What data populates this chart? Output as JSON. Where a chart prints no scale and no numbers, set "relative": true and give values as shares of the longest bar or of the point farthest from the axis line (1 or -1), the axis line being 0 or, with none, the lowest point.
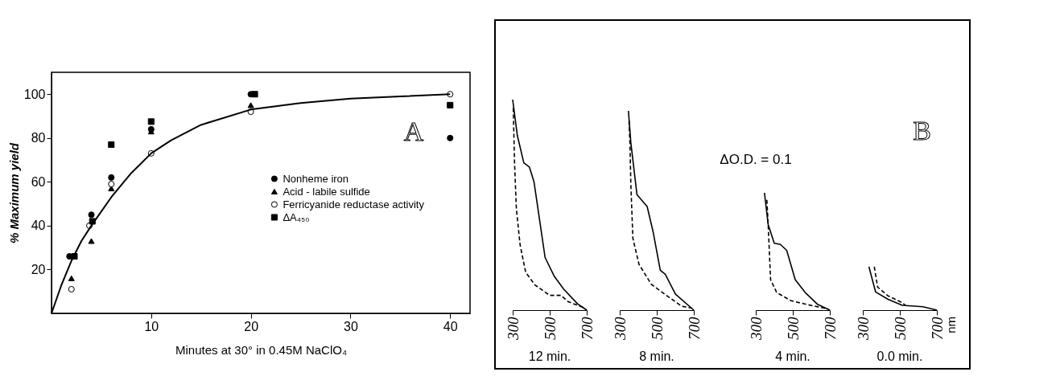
{
  "chart_data": [
    {
      "type": "scatter",
      "xlabel": "Minutes at 30° in 0.45M NaClO₄",
      "ylabel": "% Maximum yield",
      "xlim": [
        0,
        42
      ],
      "ylim": [
        0,
        110
      ],
      "xticks": [
        10,
        20,
        30,
        40
      ],
      "yticks": [
        20,
        40,
        60,
        80,
        100
      ],
      "legend": "right",
      "annotations": [
        "A"
      ],
      "series": [
        {
          "name": "Nonheme iron",
          "color": "#000000",
          "marker": "circle",
          "x": [
            1.8,
            4,
            6,
            10,
            20,
            40
          ],
          "values": [
            26,
            45,
            62,
            84,
            100,
            80
          ]
        },
        {
          "name": "Acid - labile sulfide",
          "color": "#000000",
          "marker": "triangle",
          "x": [
            2,
            4,
            6,
            10,
            20
          ],
          "values": [
            16,
            33,
            57,
            83,
            95
          ]
        },
        {
          "name": "Ferricyanide reductase activity",
          "color": "#ffffff",
          "marker": "circle",
          "x": [
            2,
            3.8,
            6,
            10,
            20,
            40
          ],
          "values": [
            11,
            40,
            59,
            73,
            92,
            100
          ]
        },
        {
          "name": "ΔA₄₅₀",
          "color": "#000000",
          "marker": "square",
          "x": [
            2.3,
            4.1,
            6,
            10,
            20.4,
            40
          ],
          "values": [
            26,
            42,
            77,
            87.5,
            100,
            95
          ]
        },
        {
          "type": "line",
          "color": "#000000",
          "x": [
            0,
            1,
            2,
            3,
            4,
            6,
            8,
            10,
            12,
            15,
            20,
            25,
            30,
            35,
            40
          ],
          "values": [
            0,
            13,
            24,
            33,
            40,
            53,
            64,
            73,
            79,
            86,
            93,
            96,
            98,
            99,
            100
          ]
        }
      ]
    },
    {
      "type": "line",
      "title": "12 min.",
      "relative": true,
      "xlim": [
        300,
        700
      ],
      "xticks": [
        300,
        500,
        700
      ],
      "series": [
        {
          "color": "#000000",
          "line_style": "solid",
          "x": [
            300,
            325,
            360,
            390,
            415,
            450,
            475,
            525,
            575,
            650,
            700
          ],
          "values": [
            1,
            0.83,
            0.7,
            0.68,
            0.61,
            0.4,
            0.25,
            0.16,
            0.1,
            0.03,
            0
          ]
        },
        {
          "color": "#000000",
          "line_style": "dashed",
          "x": [
            303,
            310,
            320,
            340,
            370,
            420,
            500,
            560,
            600,
            690
          ],
          "values": [
            0.96,
            0.7,
            0.48,
            0.31,
            0.18,
            0.12,
            0.07,
            0.07,
            0.04,
            0.01
          ]
        }
      ]
    },
    {
      "type": "line",
      "title": "8 min.",
      "relative": true,
      "xlim": [
        300,
        700
      ],
      "xticks": [
        300,
        500,
        700
      ],
      "series": [
        {
          "color": "#000000",
          "line_style": "solid",
          "x": [
            347,
            360,
            393,
            448,
            481,
            519,
            546,
            601,
            700
          ],
          "values": [
            1,
            0.84,
            0.58,
            0.52,
            0.39,
            0.2,
            0.18,
            0.08,
            0
          ]
        },
        {
          "color": "#000000",
          "line_style": "dashed",
          "x": [
            350,
            355,
            360,
            371,
            404,
            470,
            558,
            634,
            690
          ],
          "values": [
            0.95,
            0.84,
            0.63,
            0.36,
            0.23,
            0.13,
            0.07,
            0.02,
            0.01
          ]
        }
      ]
    },
    {
      "type": "line",
      "title": "4 min.",
      "relative": true,
      "xlim": [
        300,
        700
      ],
      "xticks": [
        300,
        500,
        700
      ],
      "annotations": [
        "ΔO.D. = 0.1"
      ],
      "series": [
        {
          "color": "#000000",
          "line_style": "solid",
          "x": [
            347,
            367,
            400,
            433,
            467,
            513,
            567,
            633,
            700
          ],
          "values": [
            1,
            0.73,
            0.57,
            0.56,
            0.51,
            0.26,
            0.15,
            0.05,
            0
          ]
        },
        {
          "color": "#000000",
          "line_style": "dashed",
          "x": [
            360,
            367,
            380,
            413,
            490,
            600,
            690
          ],
          "values": [
            0.94,
            0.73,
            0.26,
            0.15,
            0.08,
            0.04,
            0.01
          ]
        }
      ]
    },
    {
      "type": "line",
      "title": "0.0 min.",
      "relative": true,
      "xlim": [
        300,
        700
      ],
      "xticks": [
        300,
        500,
        700
      ],
      "annotations": [
        "B",
        "nm"
      ],
      "series": [
        {
          "color": "#000000",
          "line_style": "solid",
          "x": [
            333,
            369,
            436,
            513,
            624,
            700
          ],
          "values": [
            1,
            0.42,
            0.25,
            0.11,
            0.08,
            0
          ]
        },
        {
          "color": "#000000",
          "line_style": "dashed",
          "x": [
            362,
            380,
            436,
            513,
            530
          ],
          "values": [
            1,
            0.53,
            0.33,
            0.17,
            0.11
          ]
        }
      ]
    }
  ]
}
